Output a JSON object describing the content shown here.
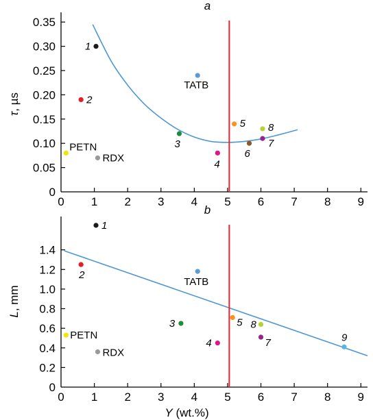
{
  "chart_data": [
    {
      "type": "scatter",
      "title": "a",
      "ylabel_symbol": "τ",
      "ylabel_unit": ", µs",
      "xlim": [
        0,
        9.2
      ],
      "ylim": [
        0,
        0.37
      ],
      "xticks": [
        "0",
        "1",
        "2",
        "3",
        "4",
        "5",
        "6",
        "7",
        "8",
        "9"
      ],
      "yticks": [
        "0",
        "0.05",
        "0.10",
        "0.15",
        "0.20",
        "0.25",
        "0.30",
        "0.35"
      ],
      "vline_x": 5.05,
      "vline_color": "#e8222e",
      "fit_color": "#4f97d4",
      "fit_curve": {
        "type": "line",
        "x": [
          0.95,
          1.5,
          2.0,
          2.5,
          3.0,
          3.5,
          4.0,
          4.5,
          5.0,
          5.5,
          6.0,
          6.5,
          7.1
        ],
        "y": [
          0.345,
          0.27,
          0.22,
          0.181,
          0.152,
          0.129,
          0.113,
          0.104,
          0.102,
          0.104,
          0.109,
          0.117,
          0.128
        ]
      },
      "points": [
        {
          "label": "1",
          "x": 1.05,
          "y": 0.3,
          "color": "#1b1b1b",
          "italic": true
        },
        {
          "label": "2",
          "x": 0.6,
          "y": 0.19,
          "color": "#e31e26",
          "italic": true
        },
        {
          "label": "3",
          "x": 3.55,
          "y": 0.12,
          "color": "#1e8c3a",
          "italic": true
        },
        {
          "label": "4",
          "x": 4.7,
          "y": 0.08,
          "color": "#e0158a",
          "italic": true
        },
        {
          "label": "5",
          "x": 5.2,
          "y": 0.14,
          "color": "#f7941d",
          "italic": true
        },
        {
          "label": "6",
          "x": 5.65,
          "y": 0.1,
          "color": "#8b5a2b",
          "italic": true
        },
        {
          "label": "7",
          "x": 6.05,
          "y": 0.11,
          "color": "#92278f",
          "italic": true
        },
        {
          "label": "8",
          "x": 6.05,
          "y": 0.13,
          "color": "#b5d334",
          "italic": true
        },
        {
          "label": "TATB",
          "x": 4.1,
          "y": 0.24,
          "color": "#5b9bd5",
          "italic": false
        },
        {
          "label": "PETN",
          "x": 0.15,
          "y": 0.08,
          "color": "#f2e600",
          "italic": false
        },
        {
          "label": "RDX",
          "x": 1.1,
          "y": 0.07,
          "color": "#9a9a9a",
          "italic": false
        }
      ]
    },
    {
      "type": "scatter",
      "title": "b",
      "ylabel_symbol": "L",
      "ylabel_unit": ", mm",
      "xlabel_symbol": "Y",
      "xlabel_unit": " (wt.%)",
      "xlim": [
        0,
        9.2
      ],
      "ylim": [
        0,
        1.74
      ],
      "xticks": [
        "0",
        "1",
        "2",
        "3",
        "4",
        "5",
        "6",
        "7",
        "8",
        "9"
      ],
      "yticks": [
        "0",
        "0.2",
        "0.4",
        "0.6",
        "0.8",
        "1.0",
        "1.2",
        "1.4"
      ],
      "vline_x": 5.05,
      "vline_color": "#e8222e",
      "fit_color": "#4f97d4",
      "fit_curve": {
        "type": "line",
        "x": [
          0.1,
          9.2
        ],
        "y": [
          1.39,
          0.32
        ]
      },
      "points": [
        {
          "label": "1",
          "x": 1.05,
          "y": 1.65,
          "color": "#1b1b1b",
          "italic": true
        },
        {
          "label": "2",
          "x": 0.6,
          "y": 1.25,
          "color": "#e31e26",
          "italic": true
        },
        {
          "label": "3",
          "x": 3.6,
          "y": 0.65,
          "color": "#1e8c3a",
          "italic": true
        },
        {
          "label": "4",
          "x": 4.7,
          "y": 0.45,
          "color": "#e0158a",
          "italic": true
        },
        {
          "label": "5",
          "x": 5.15,
          "y": 0.71,
          "color": "#f7941d",
          "italic": true
        },
        {
          "label": "7",
          "x": 6.0,
          "y": 0.51,
          "color": "#92278f",
          "italic": true
        },
        {
          "label": "8",
          "x": 6.0,
          "y": 0.64,
          "color": "#b5d334",
          "italic": true
        },
        {
          "label": "9",
          "x": 8.5,
          "y": 0.41,
          "color": "#5ab4e5",
          "italic": true
        },
        {
          "label": "TATB",
          "x": 4.1,
          "y": 1.18,
          "color": "#5b9bd5",
          "italic": false
        },
        {
          "label": "PETN",
          "x": 0.15,
          "y": 0.53,
          "color": "#f2e600",
          "italic": false
        },
        {
          "label": "RDX",
          "x": 1.1,
          "y": 0.36,
          "color": "#9a9a9a",
          "italic": false
        }
      ]
    }
  ]
}
